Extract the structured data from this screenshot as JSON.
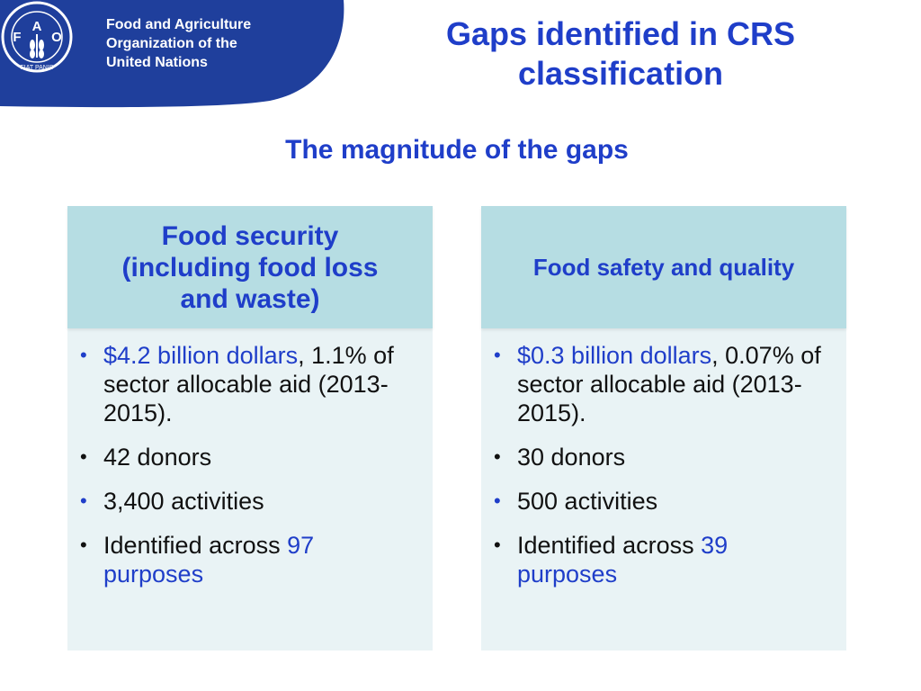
{
  "header": {
    "org_line1": "Food and Agriculture",
    "org_line2": "Organization of the",
    "org_line3": "United Nations",
    "logo_letters": [
      "F",
      "A",
      "O"
    ],
    "logo_motto": "FIAT PANIS",
    "banner_color": "#1f3f9c"
  },
  "title": {
    "line1": "Gaps identified in CRS",
    "line2": "classification"
  },
  "subtitle": "The magnitude of the gaps",
  "panels": [
    {
      "heading_line1": "Food security",
      "heading_line2": "(including food loss",
      "heading_line3": "and waste)",
      "bullet1_highlight": "$4.2 billion dollars",
      "bullet1_rest": ", 1.1% of sector allocable aid (2013-2015).",
      "bullet2": "42 donors",
      "bullet3": "3,400 activities",
      "bullet4_prefix": "Identified across ",
      "bullet4_highlight": "97 purposes"
    },
    {
      "heading": "Food safety and quality",
      "bullet1_highlight": "$0.3 billion dollars",
      "bullet1_rest": ", 0.07% of sector allocable aid (2013-2015).",
      "bullet2": "30 donors",
      "bullet3": "500 activities",
      "bullet4_prefix": "Identified across ",
      "bullet4_highlight": "39 purposes"
    }
  ],
  "colors": {
    "accent_blue": "#1f3ec9",
    "panel_header": "#b6dde3",
    "panel_body": "#e9f3f5"
  }
}
